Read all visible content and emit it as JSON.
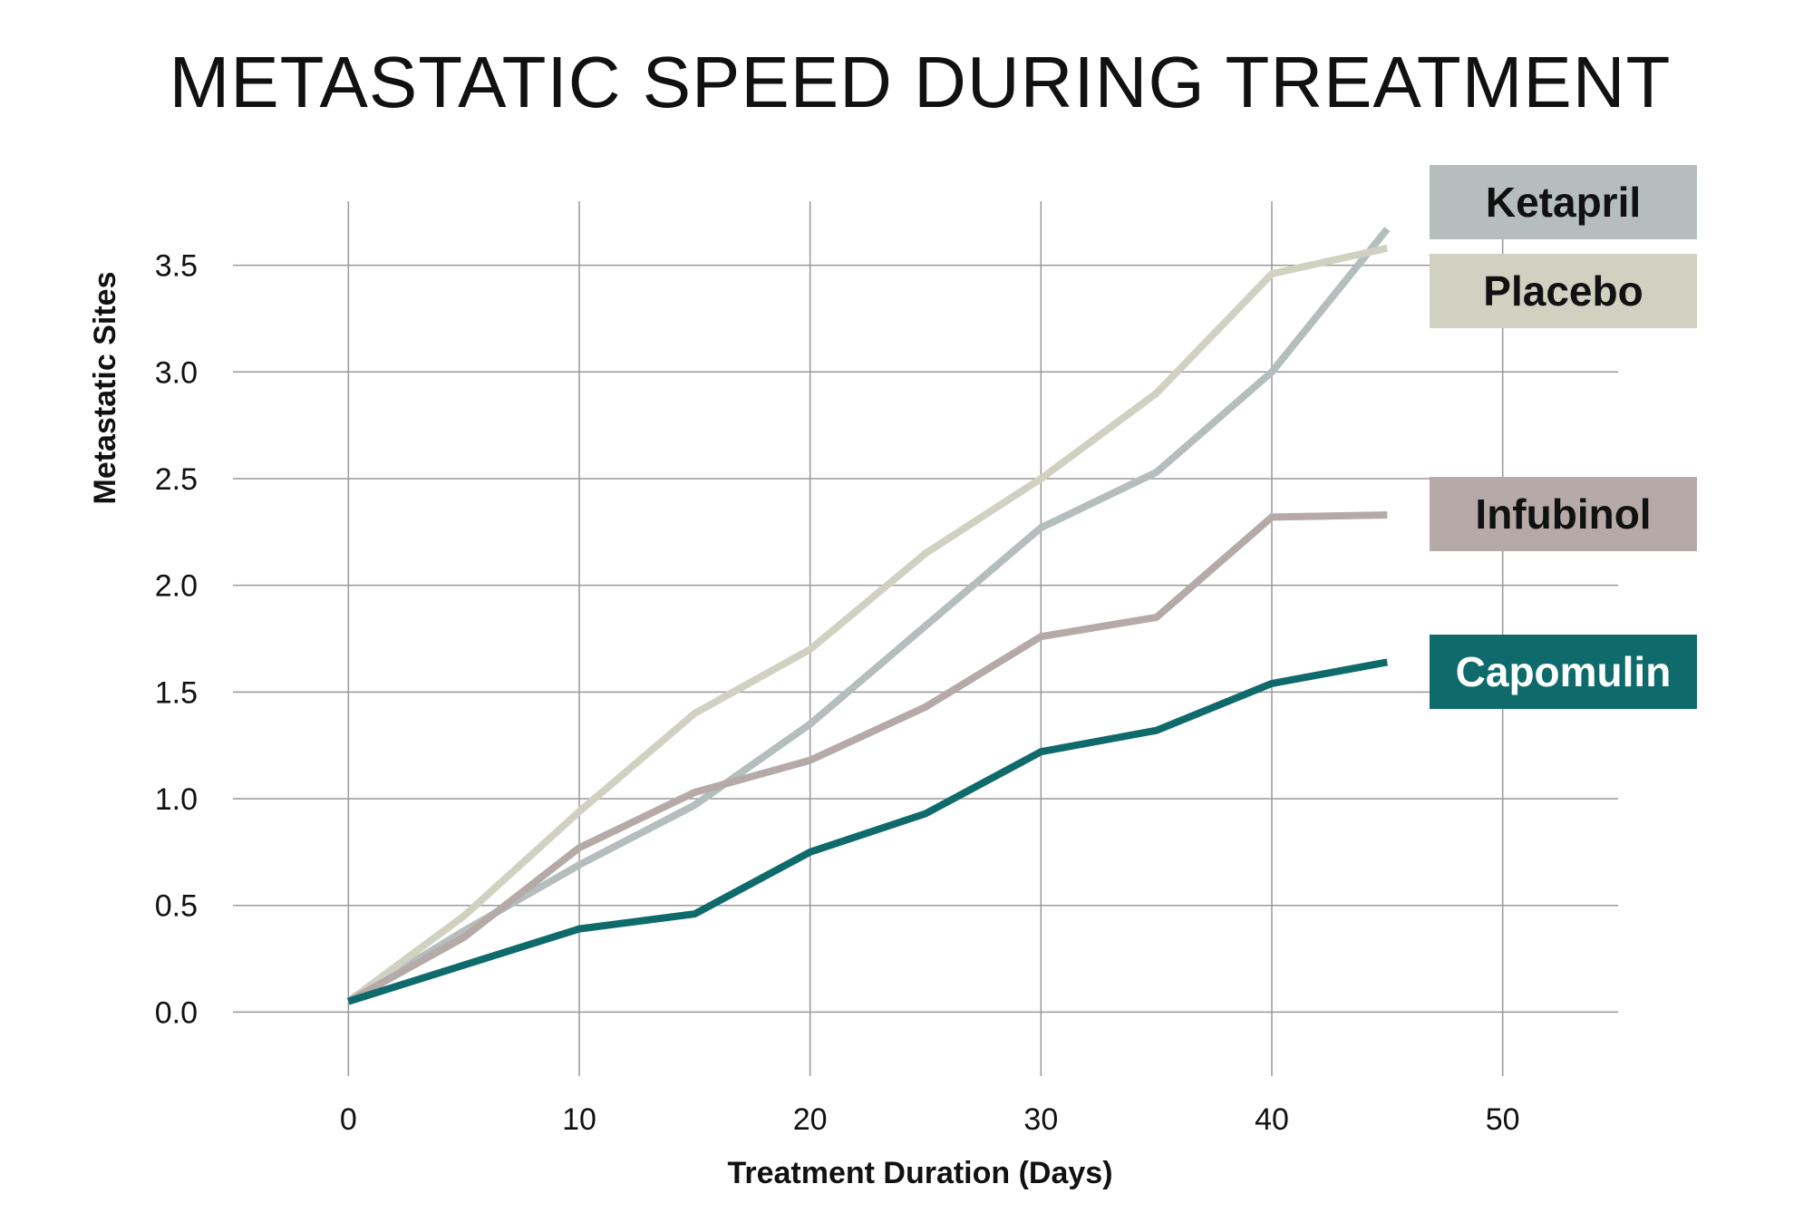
{
  "colors": {
    "capomulin": "#0f6b6b",
    "infubinol": "#b5aaa8",
    "ketapril": "#b5bdbd",
    "placebo": "#d1d1c1",
    "grid": "#999999",
    "text": "#111111"
  },
  "chart_data": {
    "type": "line",
    "title": "METASTATIC SPEED DURING TREATMENT",
    "xlabel": "Treatment Duration (Days)",
    "ylabel": "Metastatic Sites",
    "xlim": [
      -5,
      55
    ],
    "ylim": [
      -0.3,
      3.8
    ],
    "xticks": [
      0,
      10,
      20,
      30,
      40,
      50
    ],
    "yticks": [
      0.0,
      0.5,
      1.0,
      1.5,
      2.0,
      2.5,
      3.0,
      3.5
    ],
    "xtick_labels": [
      "0",
      "10",
      "20",
      "30",
      "40",
      "50"
    ],
    "ytick_labels": [
      "0.0",
      "0.5",
      "1.0",
      "1.5",
      "2.0",
      "2.5",
      "3.0",
      "3.5"
    ],
    "grid": true,
    "legend_position": "right, beside line ends",
    "x": [
      0,
      5,
      10,
      15,
      20,
      25,
      30,
      35,
      40,
      45
    ],
    "series": [
      {
        "name": "Ketapril",
        "key": "ketapril",
        "values": [
          0.05,
          0.38,
          0.69,
          0.97,
          1.35,
          1.81,
          2.27,
          2.53,
          3.0,
          3.67
        ]
      },
      {
        "name": "Placebo",
        "key": "placebo",
        "values": [
          0.05,
          0.45,
          0.94,
          1.4,
          1.7,
          2.15,
          2.5,
          2.9,
          3.46,
          3.58
        ]
      },
      {
        "name": "Infubinol",
        "key": "infubinol",
        "values": [
          0.05,
          0.35,
          0.77,
          1.03,
          1.18,
          1.43,
          1.76,
          1.85,
          2.32,
          2.33
        ]
      },
      {
        "name": "Capomulin",
        "key": "capomulin",
        "values": [
          0.05,
          0.22,
          0.39,
          0.46,
          0.75,
          0.93,
          1.22,
          1.32,
          1.54,
          1.64
        ]
      }
    ]
  },
  "legend": [
    {
      "key": "ketapril",
      "label": "Ketapril",
      "text_color": "#111111"
    },
    {
      "key": "placebo",
      "label": "Placebo",
      "text_color": "#111111"
    },
    {
      "key": "infubinol",
      "label": "Infubinol",
      "text_color": "#111111"
    },
    {
      "key": "capomulin",
      "label": "Capomulin",
      "text_color": "#ffffff"
    }
  ]
}
